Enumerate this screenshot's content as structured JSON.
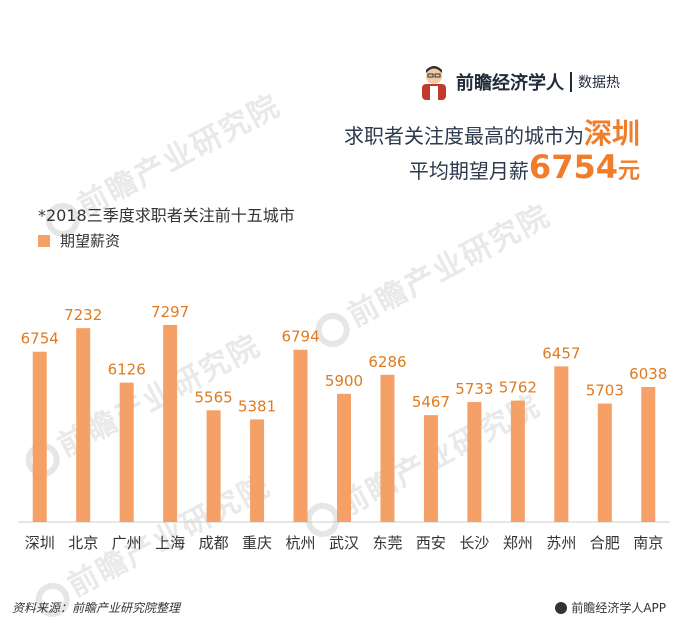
{
  "brand": {
    "name": "前瞻经济学人",
    "sub": "数据热"
  },
  "headline": {
    "line1_prefix": "求职者关注度最高的城市为",
    "line1_city": "深圳",
    "line2_prefix": "平均期望月薪",
    "line2_value": "6754",
    "line2_unit": "元"
  },
  "watermark_text": "前瞻产业研究院",
  "footer": {
    "source": "资料来源：前瞻产业研究院整理",
    "app": "前瞻经济学人APP"
  },
  "colors": {
    "bar": "#f4a066",
    "label": "#e07a20",
    "highlight": "#f07d2c"
  },
  "chart_data": {
    "type": "bar",
    "title": "*2018三季度求职者关注前十五城市",
    "legend": [
      "期望薪资"
    ],
    "categories": [
      "深圳",
      "北京",
      "广州",
      "上海",
      "成都",
      "重庆",
      "杭州",
      "武汉",
      "东莞",
      "西安",
      "长沙",
      "郑州",
      "苏州",
      "合肥",
      "南京"
    ],
    "series": [
      {
        "name": "期望薪资",
        "values": [
          6754,
          7232,
          6126,
          7297,
          5565,
          5381,
          6794,
          5900,
          6286,
          5467,
          5733,
          5762,
          6457,
          5703,
          6038
        ]
      }
    ],
    "ylim": [
      0,
      7600
    ],
    "grid": false,
    "legend_position": "top-left"
  }
}
